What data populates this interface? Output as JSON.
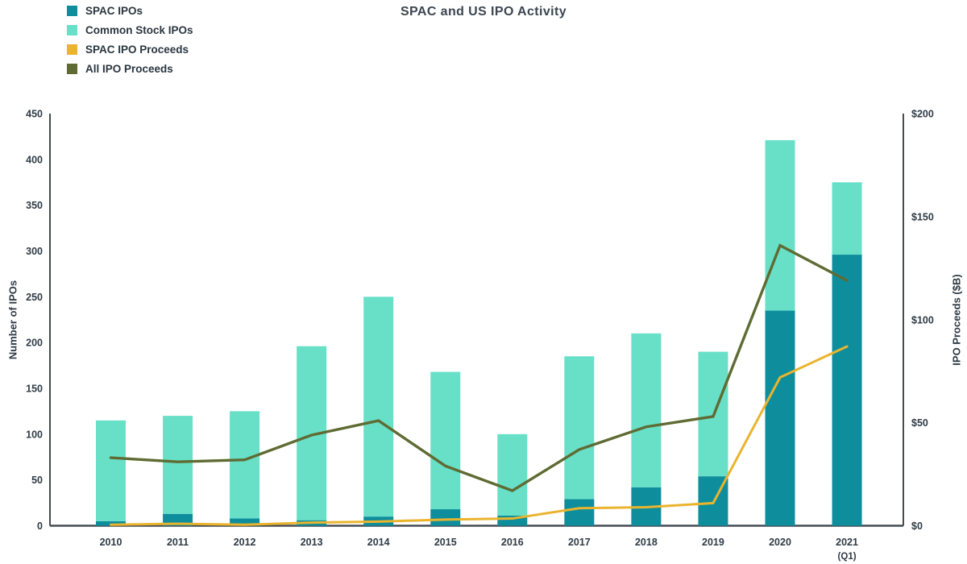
{
  "chart_data": {
    "type": "combo-stacked-bar-line",
    "title": "SPAC and US IPO Activity",
    "categories": [
      "2010",
      "2011",
      "2012",
      "2013",
      "2014",
      "2015",
      "2016",
      "2017",
      "2018",
      "2019",
      "2020",
      "2021"
    ],
    "category_sublabels": [
      "",
      "",
      "",
      "",
      "",
      "",
      "",
      "",
      "",
      "",
      "",
      "(Q1)"
    ],
    "series": [
      {
        "name": "SPAC IPOs",
        "kind": "bar",
        "stack": true,
        "axis": "left",
        "color": "#0E8E9D",
        "values": [
          5,
          13,
          8,
          6,
          10,
          18,
          11,
          29,
          42,
          54,
          235,
          296
        ]
      },
      {
        "name": "Common Stock IPOs",
        "kind": "bar",
        "stack": true,
        "axis": "left",
        "color": "#68E0C8",
        "values": [
          110,
          107,
          117,
          190,
          240,
          150,
          89,
          156,
          168,
          136,
          186,
          79
        ]
      },
      {
        "name": "SPAC IPO Proceeds",
        "kind": "line",
        "axis": "right",
        "color": "#EAB42D",
        "values": [
          0.5,
          1,
          0.5,
          1.5,
          2,
          3,
          3.5,
          8.5,
          9,
          11,
          72,
          87
        ]
      },
      {
        "name": "All IPO Proceeds",
        "kind": "line",
        "axis": "right",
        "color": "#5F6B33",
        "values": [
          33,
          31,
          32,
          44,
          51,
          29,
          17,
          37,
          48,
          53,
          136,
          119
        ]
      }
    ],
    "stacked_bar_totals": [
      115,
      120,
      125,
      196,
      250,
      168,
      100,
      185,
      210,
      190,
      421,
      375
    ],
    "left_axis": {
      "label": "Number of IPOs",
      "min": 0,
      "max": 450,
      "tick_step": 50
    },
    "right_axis": {
      "label": "IPO Proceeds ($B)",
      "min": 0,
      "max": 200,
      "tick_step": 50,
      "tick_prefix": "$"
    },
    "grid": false,
    "legend_position": "top-left",
    "background": "#FFFFFF",
    "text_color": "#2F3B45",
    "axis_line_color": "#454C52"
  }
}
